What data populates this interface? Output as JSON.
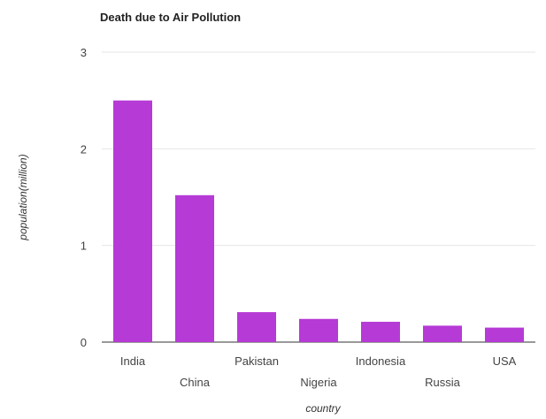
{
  "chart_data": {
    "type": "bar",
    "title": "Death due to Air Pollution",
    "xlabel": "country",
    "ylabel": "population(million)",
    "categories": [
      "India",
      "China",
      "Pakistan",
      "Nigeria",
      "Indonesia",
      "Russia",
      "USA"
    ],
    "values": [
      2.5,
      1.52,
      0.31,
      0.24,
      0.21,
      0.17,
      0.15
    ],
    "ylim": [
      0,
      3
    ],
    "yticks": [
      0,
      1,
      2,
      3
    ],
    "grid": true,
    "legend": "none",
    "bar_color": "#b63ad6",
    "label_stagger": true
  }
}
